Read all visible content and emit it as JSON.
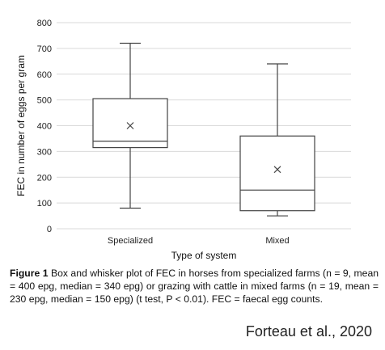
{
  "chart_data": {
    "type": "box",
    "title": "",
    "xlabel": "Type of system",
    "ylabel": "FEC in number of eggs per gram",
    "ylim": [
      0,
      800
    ],
    "yticks": [
      0,
      100,
      200,
      300,
      400,
      500,
      600,
      700,
      800
    ],
    "grid": true,
    "categories": [
      "Specialized",
      "Mixed"
    ],
    "boxes": [
      {
        "category": "Specialized",
        "min": 80,
        "q1": 315,
        "median": 340,
        "q3": 505,
        "max": 720,
        "mean": 400
      },
      {
        "category": "Mixed",
        "min": 50,
        "q1": 70,
        "median": 150,
        "q3": 360,
        "max": 640,
        "mean": 230
      }
    ],
    "colors": {
      "box_stroke": "#444444",
      "grid": "#d9d9d9"
    }
  },
  "caption": {
    "label": "Figure 1",
    "text": "Box and whisker plot of FEC in horses from specialized farms (n = 9, mean = 400 epg, median = 340 epg) or grazing with cattle in mixed farms (n = 19, mean = 230 epg, median = 150 epg) (t test, P < 0.01). FEC = faecal egg counts."
  },
  "credit": "Forteau et al., 2020"
}
